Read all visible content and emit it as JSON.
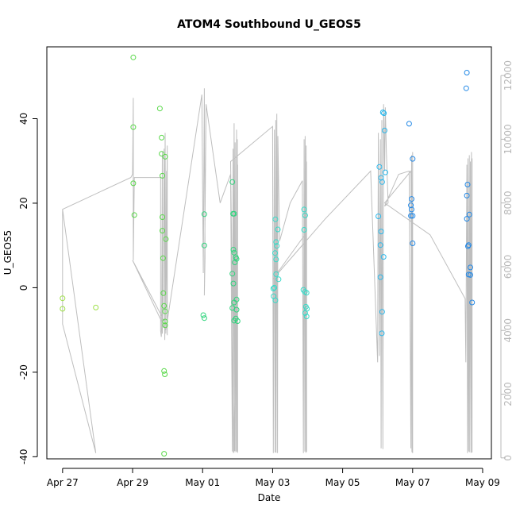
{
  "chart_data": {
    "type": "scatter",
    "title": "ATOM4 Southbound U_GEOS5",
    "xlabel": "Date",
    "ylabel": "U_GEOS5",
    "x_ticks": [
      "Apr 27",
      "Apr 29",
      "May 01",
      "May 03",
      "May 05",
      "May 07",
      "May 09"
    ],
    "x_range_days": [
      26.55,
      39.25
    ],
    "y_ticks_left": [
      "-40",
      "-20",
      "0",
      "20",
      "40"
    ],
    "ylim_left": [
      -40.5,
      57
    ],
    "y_ticks_right": [
      "0",
      "2000",
      "4000",
      "6000",
      "8000",
      "10000",
      "12000"
    ],
    "ylim_right": [
      -30,
      12900
    ],
    "grid": false,
    "colors": {
      "altitude_line": "#bebebe",
      "point_palette": [
        "#9ee048",
        "#58d848",
        "#2ed47c",
        "#36dac8",
        "#2ab8ec",
        "#2288e6"
      ]
    },
    "series": [
      {
        "points": [
          {
            "x": 27.0,
            "y": -2.5
          },
          {
            "x": 27.0,
            "y": -5.0
          },
          {
            "x": 27.95,
            "y": -4.7
          },
          {
            "x": 29.02,
            "y": 54.5
          },
          {
            "x": 29.02,
            "y": 38.0
          },
          {
            "x": 29.02,
            "y": 24.7
          },
          {
            "x": 29.05,
            "y": 17.2
          },
          {
            "x": 29.78,
            "y": 42.4
          },
          {
            "x": 29.83,
            "y": 35.5
          },
          {
            "x": 29.83,
            "y": 31.7
          },
          {
            "x": 29.85,
            "y": 26.5
          },
          {
            "x": 29.85,
            "y": 16.7
          },
          {
            "x": 29.85,
            "y": 13.5
          },
          {
            "x": 29.87,
            "y": 7.0
          },
          {
            "x": 29.88,
            "y": -1.3
          },
          {
            "x": 29.9,
            "y": -4.3
          },
          {
            "x": 29.93,
            "y": 31.0
          },
          {
            "x": 29.95,
            "y": 11.5
          },
          {
            "x": 29.93,
            "y": -5.6
          },
          {
            "x": 29.93,
            "y": -8.0
          },
          {
            "x": 29.93,
            "y": -8.9
          },
          {
            "x": 29.9,
            "y": -19.7
          },
          {
            "x": 29.92,
            "y": -20.5
          },
          {
            "x": 29.9,
            "y": -39.3
          },
          {
            "x": 31.05,
            "y": 17.4
          },
          {
            "x": 31.05,
            "y": 10.0
          },
          {
            "x": 31.02,
            "y": -6.5
          },
          {
            "x": 31.05,
            "y": -7.2
          },
          {
            "x": 31.85,
            "y": 25.0
          },
          {
            "x": 31.87,
            "y": 17.5
          },
          {
            "x": 31.9,
            "y": 17.5
          },
          {
            "x": 31.88,
            "y": 9.0
          },
          {
            "x": 31.9,
            "y": 8.3
          },
          {
            "x": 31.95,
            "y": 7.2
          },
          {
            "x": 31.92,
            "y": 6.0
          },
          {
            "x": 31.97,
            "y": 6.8
          },
          {
            "x": 31.85,
            "y": 3.3
          },
          {
            "x": 31.88,
            "y": 1.0
          },
          {
            "x": 31.97,
            "y": -2.8
          },
          {
            "x": 31.9,
            "y": -3.5
          },
          {
            "x": 31.85,
            "y": -4.8
          },
          {
            "x": 31.97,
            "y": -5.2
          },
          {
            "x": 31.95,
            "y": -7.3
          },
          {
            "x": 31.9,
            "y": -7.8
          },
          {
            "x": 32.0,
            "y": -7.9
          },
          {
            "x": 33.08,
            "y": 16.2
          },
          {
            "x": 33.15,
            "y": 13.8
          },
          {
            "x": 33.1,
            "y": 10.8
          },
          {
            "x": 33.12,
            "y": 9.9
          },
          {
            "x": 33.07,
            "y": 8.2
          },
          {
            "x": 33.1,
            "y": 6.7
          },
          {
            "x": 33.1,
            "y": 3.2
          },
          {
            "x": 33.17,
            "y": 2.0
          },
          {
            "x": 33.02,
            "y": -0.2
          },
          {
            "x": 33.05,
            "y": 0.0
          },
          {
            "x": 33.03,
            "y": -2.0
          },
          {
            "x": 33.08,
            "y": -3.0
          },
          {
            "x": 33.9,
            "y": 18.5
          },
          {
            "x": 33.93,
            "y": 17.1
          },
          {
            "x": 33.9,
            "y": 13.7
          },
          {
            "x": 33.88,
            "y": -0.5
          },
          {
            "x": 33.92,
            "y": -1.0
          },
          {
            "x": 33.97,
            "y": -1.2
          },
          {
            "x": 33.95,
            "y": -4.5
          },
          {
            "x": 33.98,
            "y": -5.0
          },
          {
            "x": 33.93,
            "y": -6.0
          },
          {
            "x": 33.97,
            "y": -6.8
          },
          {
            "x": 36.05,
            "y": 28.6
          },
          {
            "x": 36.15,
            "y": 41.5
          },
          {
            "x": 36.18,
            "y": 41.3
          },
          {
            "x": 36.2,
            "y": 37.2
          },
          {
            "x": 36.1,
            "y": 26.0
          },
          {
            "x": 36.13,
            "y": 25.0
          },
          {
            "x": 36.22,
            "y": 27.3
          },
          {
            "x": 36.02,
            "y": 16.9
          },
          {
            "x": 36.1,
            "y": 13.3
          },
          {
            "x": 36.08,
            "y": 10.1
          },
          {
            "x": 36.17,
            "y": 7.3
          },
          {
            "x": 36.08,
            "y": 2.5
          },
          {
            "x": 36.13,
            "y": -5.7
          },
          {
            "x": 36.12,
            "y": -10.8
          },
          {
            "x": 36.9,
            "y": 38.8
          },
          {
            "x": 37.0,
            "y": 30.5
          },
          {
            "x": 36.97,
            "y": 21.0
          },
          {
            "x": 36.95,
            "y": 19.5
          },
          {
            "x": 36.97,
            "y": 18.5
          },
          {
            "x": 36.95,
            "y": 17.0
          },
          {
            "x": 37.0,
            "y": 17.0
          },
          {
            "x": 37.0,
            "y": 10.5
          },
          {
            "x": 38.55,
            "y": 50.9
          },
          {
            "x": 38.53,
            "y": 47.2
          },
          {
            "x": 38.57,
            "y": 24.4
          },
          {
            "x": 38.55,
            "y": 21.8
          },
          {
            "x": 38.62,
            "y": 17.3
          },
          {
            "x": 38.55,
            "y": 16.3
          },
          {
            "x": 38.6,
            "y": 10.1
          },
          {
            "x": 38.58,
            "y": 9.8
          },
          {
            "x": 38.65,
            "y": 4.8
          },
          {
            "x": 38.6,
            "y": 3.1
          },
          {
            "x": 38.65,
            "y": 3.0
          },
          {
            "x": 38.7,
            "y": -3.5
          }
        ]
      },
      {
        "axis": "right",
        "x": [
          27.0,
          27.0,
          27.95,
          27.0,
          27.0,
          28.95,
          29.0,
          29.02,
          29.02,
          29.05,
          29.8,
          29.8,
          29.82,
          29.83,
          29.85,
          29.85,
          29.87,
          29.9,
          29.92,
          29.93,
          29.95,
          29.97,
          29.99,
          29.99,
          29.95,
          29.0,
          29.95,
          30.98,
          31.02,
          31.05,
          31.07,
          31.05,
          31.1,
          31.5,
          31.8,
          31.85,
          31.87,
          31.88,
          31.9,
          31.92,
          31.93,
          31.95,
          31.97,
          31.98,
          31.99,
          32.0,
          32.0,
          31.9,
          31.8,
          33.0,
          33.02,
          33.05,
          33.07,
          33.09,
          33.1,
          33.12,
          33.14,
          33.15,
          33.2,
          33.5,
          33.85,
          33.88,
          33.9,
          33.92,
          33.93,
          33.95,
          33.96,
          33.97,
          33.97,
          33.92,
          33.0,
          34.5,
          35.8,
          36.0,
          36.02,
          36.05,
          36.08,
          36.1,
          36.12,
          36.15,
          36.17,
          36.18,
          36.2,
          36.22,
          36.25,
          36.3,
          36.2,
          36.6,
          36.9,
          36.95,
          36.97,
          36.98,
          37.0,
          37.0,
          36.95,
          36.2,
          37.5,
          38.5,
          38.52,
          38.55,
          38.57,
          38.58,
          38.6,
          38.62,
          38.63,
          38.65,
          38.67,
          38.68,
          38.7,
          38.7
        ],
        "y": [
          4300,
          7800,
          150,
          4200,
          7800,
          8800,
          8900,
          11300,
          6200,
          8800,
          8800,
          4000,
          3800,
          4100,
          9600,
          3900,
          4600,
          9700,
          3700,
          10200,
          3900,
          9000,
          3850,
          9800,
          4200,
          6200,
          4000,
          11400,
          5800,
          11600,
          6300,
          5100,
          11100,
          8000,
          8900,
          200,
          9700,
          150,
          10500,
          220,
          9900,
          180,
          10300,
          200,
          10000,
          160,
          9200,
          180,
          9300,
          10400,
          150,
          10300,
          170,
          10600,
          160,
          10800,
          150,
          10100,
          6800,
          8000,
          8700,
          150,
          10000,
          200,
          10100,
          160,
          9800,
          190,
          9300,
          7000,
          5600,
          7500,
          9000,
          3000,
          10200,
          3200,
          10000,
          300,
          10600,
          280,
          11100,
          10600,
          9000,
          11000,
          9600,
          8000,
          7900,
          8900,
          9000,
          300,
          9500,
          180,
          9600,
          150,
          9000,
          8000,
          7000,
          5000,
          3000,
          9200,
          150,
          9400,
          200,
          9500,
          180,
          9300,
          160,
          9600,
          170,
          9400
        ]
      }
    ]
  }
}
